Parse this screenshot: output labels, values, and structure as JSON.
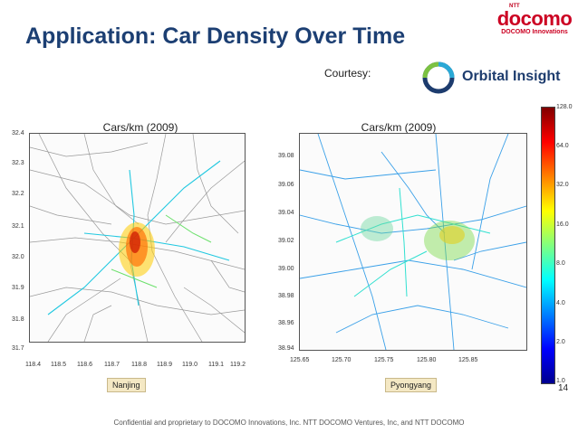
{
  "header": {
    "title": "Application: Car Density Over Time",
    "logo_ntt": "NTT",
    "logo_brand": "docomo",
    "logo_sub": "DOCOMO Innovations"
  },
  "courtesy": {
    "label": "Courtesy:",
    "company": "Orbital Insight",
    "logo_icon": "orbital-ring-icon"
  },
  "maps": [
    {
      "title": "Cars/km (2009)",
      "city": "Nanjing",
      "x_ticks": [
        "118.4",
        "118.5",
        "118.6",
        "118.7",
        "118.8",
        "118.9",
        "119.0",
        "119.1",
        "119.2"
      ],
      "y_ticks": [
        "32.4",
        "32.3",
        "32.2",
        "32.1",
        "32.0",
        "31.9",
        "31.8",
        "31.7"
      ]
    },
    {
      "title": "Cars/km (2009)",
      "city": "Pyongyang",
      "x_ticks": [
        "125.65",
        "125.70",
        "125.75",
        "125.80",
        "125.85"
      ],
      "y_ticks": [
        "39.08",
        "39.06",
        "39.04",
        "39.02",
        "39.00",
        "38.98",
        "38.96",
        "38.94"
      ]
    }
  ],
  "colorbar": {
    "scale": "log",
    "ticks": [
      "128.0",
      "64.0",
      "32.0",
      "16.0",
      "8.0",
      "4.0",
      "2.0",
      "1.0"
    ],
    "colors": [
      "#00008f",
      "#0000ff",
      "#0080ff",
      "#00ffff",
      "#80ff80",
      "#ffff00",
      "#ff8000",
      "#ff0000",
      "#800000"
    ]
  },
  "footer": {
    "text": "Confidential and proprietary to DOCOMO Innovations, Inc. NTT DOCOMO Ventures, Inc, and NTT DOCOMO",
    "page": "14"
  }
}
